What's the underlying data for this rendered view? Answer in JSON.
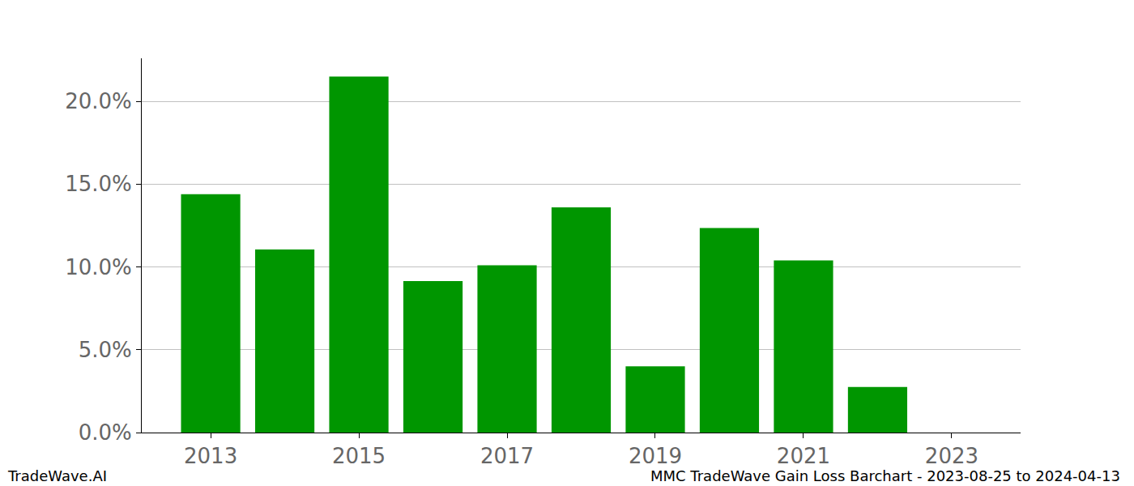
{
  "chart_data": {
    "type": "bar",
    "x": [
      2013,
      2014,
      2015,
      2016,
      2017,
      2018,
      2019,
      2020,
      2021,
      2022
    ],
    "values": [
      14.4,
      11.05,
      21.5,
      9.15,
      10.1,
      13.6,
      4.0,
      12.35,
      10.4,
      2.75
    ],
    "color": "#009600",
    "xlim": [
      2012.07,
      2023.93
    ],
    "xticks": [
      2013,
      2015,
      2017,
      2019,
      2021,
      2023
    ],
    "ylim": [
      0,
      22.6
    ],
    "yticks": [
      {
        "value": 0,
        "label": "0.0%"
      },
      {
        "value": 5,
        "label": "5.0%"
      },
      {
        "value": 10,
        "label": "10.0%"
      },
      {
        "value": 15,
        "label": "15.0%"
      },
      {
        "value": 20,
        "label": "20.0%"
      }
    ],
    "grid": true,
    "annotations": [
      "TradeWave.AI",
      "MMC TradeWave Gain Loss Barchart - 2023-08-25 to 2024-04-13"
    ]
  }
}
